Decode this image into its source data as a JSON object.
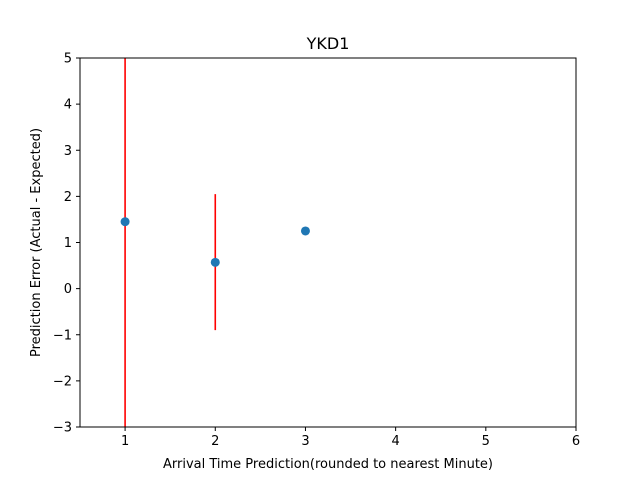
{
  "chart_data": {
    "type": "scatter",
    "title": "YKD1",
    "xlabel": "Arrival Time Prediction(rounded to nearest Minute)",
    "ylabel": "Prediction Error (Actual - Expected)",
    "xlim": [
      0.5,
      6
    ],
    "ylim": [
      -3,
      5
    ],
    "xticks": [
      1,
      2,
      3,
      4,
      5,
      6
    ],
    "yticks": [
      -3,
      -2,
      -1,
      0,
      1,
      2,
      3,
      4,
      5
    ],
    "xtick_labels": [
      "1",
      "2",
      "3",
      "4",
      "5",
      "6"
    ],
    "ytick_labels": [
      "−3",
      "−2",
      "−1",
      "0",
      "1",
      "2",
      "3",
      "4",
      "5"
    ],
    "grid": false,
    "points": [
      {
        "x": 1,
        "y": 1.45,
        "err_low": -3.0,
        "err_high": 5.0
      },
      {
        "x": 2,
        "y": 0.57,
        "err_low": -0.9,
        "err_high": 2.05
      },
      {
        "x": 3,
        "y": 1.25
      }
    ],
    "colors": {
      "marker": "#1f77b4",
      "errorbar": "#ff0000",
      "axes": "#000000"
    }
  }
}
